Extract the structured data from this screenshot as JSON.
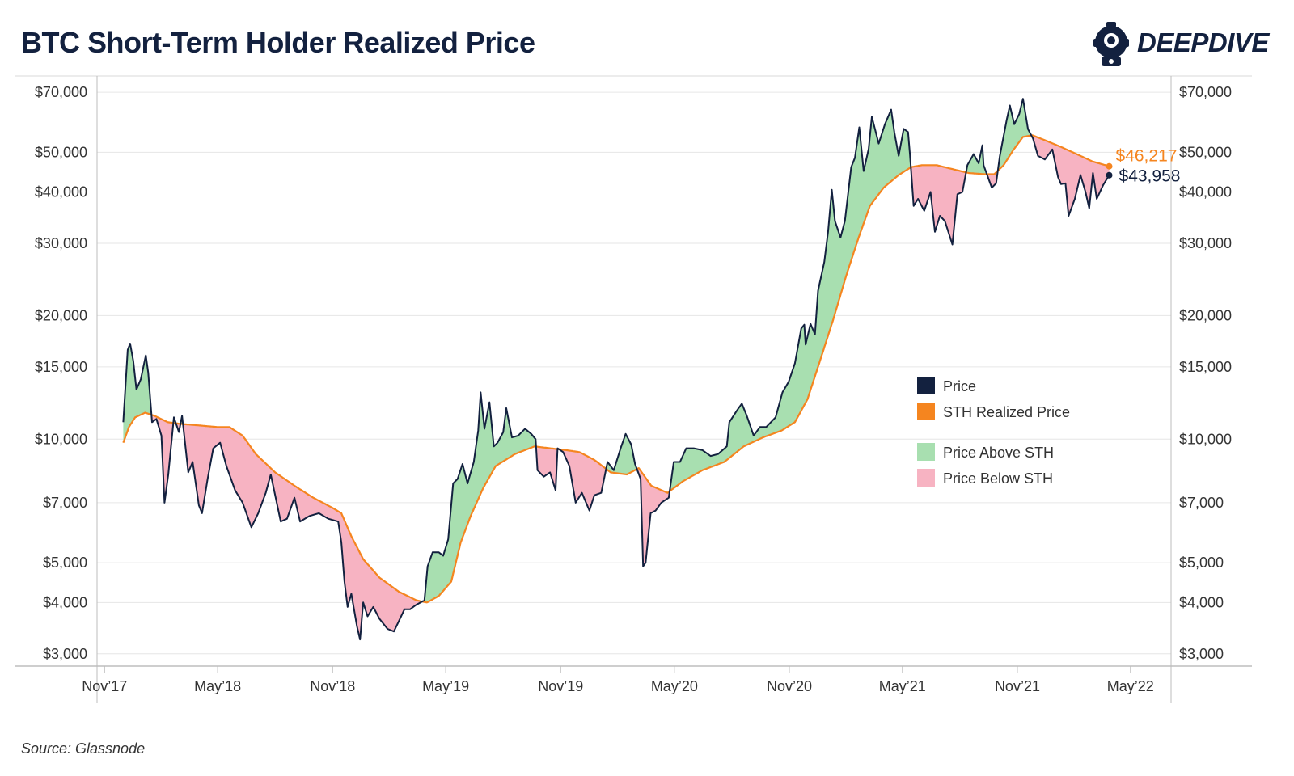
{
  "header": {
    "title": "BTC Short-Term Holder Realized Price"
  },
  "logo": {
    "name": "diver-helmet-icon",
    "text_bold": "DEEP",
    "text_light": "DIVE"
  },
  "footer": {
    "source": "Source: Glassnode"
  },
  "colors": {
    "price": "#13213f",
    "sth": "#f5851f",
    "above": "#a8dfb0",
    "below": "#f7b3c2",
    "grid": "#e6e6e6"
  },
  "chart_data": {
    "type": "line",
    "title": "BTC Short-Term Holder Realized Price",
    "y_scale": "log",
    "ylim": [
      2800,
      76000
    ],
    "xlim": [
      "2017-10-20",
      "2022-07-05"
    ],
    "yticks": [
      3000,
      4000,
      5000,
      7000,
      10000,
      15000,
      20000,
      30000,
      40000,
      50000,
      70000
    ],
    "ytick_labels": [
      "$3,000",
      "$4,000",
      "$5,000",
      "$7,000",
      "$10,000",
      "$15,000",
      "$20,000",
      "$30,000",
      "$40,000",
      "$50,000",
      "$70,000"
    ],
    "xticks": [
      "2017-11-01",
      "2018-05-01",
      "2018-11-01",
      "2019-05-01",
      "2019-11-01",
      "2020-05-01",
      "2020-11-01",
      "2021-05-01",
      "2021-11-01",
      "2022-05-01"
    ],
    "xtick_labels": [
      "Nov’17",
      "May’18",
      "Nov’18",
      "May’19",
      "Nov’19",
      "May’20",
      "Nov’20",
      "May’21",
      "Nov’21",
      "May’22"
    ],
    "legend": [
      {
        "label": "Price",
        "color": "#13213f"
      },
      {
        "label": "STH Realized Price",
        "color": "#f5851f"
      },
      {
        "label": "Price Above STH",
        "color": "#a8dfb0"
      },
      {
        "label": "Price Below STH",
        "color": "#f7b3c2"
      }
    ],
    "last_values": {
      "sth_label": "$46,217",
      "price_label": "$43,958"
    },
    "series": [
      {
        "name": "Price",
        "points": [
          [
            "2017-12-01",
            11000
          ],
          [
            "2017-12-08",
            16500
          ],
          [
            "2017-12-12",
            17100
          ],
          [
            "2017-12-17",
            15500
          ],
          [
            "2017-12-22",
            13200
          ],
          [
            "2017-12-29",
            14000
          ],
          [
            "2018-01-06",
            16000
          ],
          [
            "2018-01-10",
            14500
          ],
          [
            "2018-01-16",
            11000
          ],
          [
            "2018-01-23",
            11200
          ],
          [
            "2018-01-31",
            10200
          ],
          [
            "2018-02-05",
            7000
          ],
          [
            "2018-02-11",
            8200
          ],
          [
            "2018-02-20",
            11300
          ],
          [
            "2018-02-28",
            10400
          ],
          [
            "2018-03-05",
            11400
          ],
          [
            "2018-03-15",
            8300
          ],
          [
            "2018-03-22",
            8800
          ],
          [
            "2018-04-01",
            6900
          ],
          [
            "2018-04-06",
            6600
          ],
          [
            "2018-04-15",
            8000
          ],
          [
            "2018-04-24",
            9500
          ],
          [
            "2018-05-05",
            9800
          ],
          [
            "2018-05-15",
            8600
          ],
          [
            "2018-05-29",
            7500
          ],
          [
            "2018-06-10",
            7000
          ],
          [
            "2018-06-24",
            6100
          ],
          [
            "2018-07-05",
            6600
          ],
          [
            "2018-07-17",
            7400
          ],
          [
            "2018-07-25",
            8200
          ],
          [
            "2018-08-10",
            6300
          ],
          [
            "2018-08-20",
            6400
          ],
          [
            "2018-09-01",
            7200
          ],
          [
            "2018-09-10",
            6300
          ],
          [
            "2018-09-25",
            6500
          ],
          [
            "2018-10-10",
            6600
          ],
          [
            "2018-10-25",
            6400
          ],
          [
            "2018-11-10",
            6300
          ],
          [
            "2018-11-15",
            5600
          ],
          [
            "2018-11-20",
            4500
          ],
          [
            "2018-11-25",
            3900
          ],
          [
            "2018-12-01",
            4200
          ],
          [
            "2018-12-10",
            3500
          ],
          [
            "2018-12-15",
            3250
          ],
          [
            "2018-12-20",
            4000
          ],
          [
            "2018-12-27",
            3700
          ],
          [
            "2019-01-05",
            3900
          ],
          [
            "2019-01-15",
            3650
          ],
          [
            "2019-01-28",
            3450
          ],
          [
            "2019-02-07",
            3400
          ],
          [
            "2019-02-15",
            3600
          ],
          [
            "2019-02-24",
            3850
          ],
          [
            "2019-03-05",
            3850
          ],
          [
            "2019-03-15",
            3950
          ],
          [
            "2019-03-28",
            4050
          ],
          [
            "2019-04-02",
            4900
          ],
          [
            "2019-04-10",
            5300
          ],
          [
            "2019-04-20",
            5300
          ],
          [
            "2019-04-27",
            5200
          ],
          [
            "2019-05-05",
            5700
          ],
          [
            "2019-05-13",
            7800
          ],
          [
            "2019-05-20",
            8000
          ],
          [
            "2019-05-28",
            8700
          ],
          [
            "2019-06-05",
            7800
          ],
          [
            "2019-06-15",
            8800
          ],
          [
            "2019-06-22",
            10500
          ],
          [
            "2019-06-26",
            13000
          ],
          [
            "2019-07-02",
            10600
          ],
          [
            "2019-07-10",
            12300
          ],
          [
            "2019-07-17",
            9600
          ],
          [
            "2019-07-23",
            9800
          ],
          [
            "2019-08-01",
            10400
          ],
          [
            "2019-08-06",
            11900
          ],
          [
            "2019-08-15",
            10100
          ],
          [
            "2019-08-25",
            10200
          ],
          [
            "2019-09-05",
            10600
          ],
          [
            "2019-09-15",
            10300
          ],
          [
            "2019-09-22",
            10000
          ],
          [
            "2019-09-25",
            8400
          ],
          [
            "2019-10-05",
            8100
          ],
          [
            "2019-10-15",
            8300
          ],
          [
            "2019-10-24",
            7500
          ],
          [
            "2019-10-27",
            9500
          ],
          [
            "2019-11-05",
            9300
          ],
          [
            "2019-11-15",
            8600
          ],
          [
            "2019-11-25",
            7000
          ],
          [
            "2019-12-05",
            7400
          ],
          [
            "2019-12-17",
            6700
          ],
          [
            "2019-12-25",
            7300
          ],
          [
            "2020-01-05",
            7400
          ],
          [
            "2020-01-15",
            8800
          ],
          [
            "2020-01-25",
            8400
          ],
          [
            "2020-02-05",
            9500
          ],
          [
            "2020-02-13",
            10300
          ],
          [
            "2020-02-22",
            9700
          ],
          [
            "2020-02-28",
            8700
          ],
          [
            "2020-03-08",
            8000
          ],
          [
            "2020-03-12",
            4900
          ],
          [
            "2020-03-16",
            5000
          ],
          [
            "2020-03-24",
            6600
          ],
          [
            "2020-04-01",
            6700
          ],
          [
            "2020-04-10",
            7000
          ],
          [
            "2020-04-22",
            7200
          ],
          [
            "2020-04-30",
            8800
          ],
          [
            "2020-05-10",
            8800
          ],
          [
            "2020-05-20",
            9500
          ],
          [
            "2020-06-01",
            9500
          ],
          [
            "2020-06-15",
            9400
          ],
          [
            "2020-06-28",
            9100
          ],
          [
            "2020-07-10",
            9200
          ],
          [
            "2020-07-24",
            9600
          ],
          [
            "2020-07-28",
            11000
          ],
          [
            "2020-08-10",
            11800
          ],
          [
            "2020-08-17",
            12200
          ],
          [
            "2020-08-25",
            11400
          ],
          [
            "2020-09-05",
            10200
          ],
          [
            "2020-09-15",
            10700
          ],
          [
            "2020-09-25",
            10700
          ],
          [
            "2020-10-10",
            11300
          ],
          [
            "2020-10-21",
            13000
          ],
          [
            "2020-10-31",
            13800
          ],
          [
            "2020-11-10",
            15300
          ],
          [
            "2020-11-20",
            18600
          ],
          [
            "2020-11-25",
            19000
          ],
          [
            "2020-11-27",
            17000
          ],
          [
            "2020-12-05",
            19100
          ],
          [
            "2020-12-12",
            18000
          ],
          [
            "2020-12-17",
            23000
          ],
          [
            "2020-12-27",
            27000
          ],
          [
            "2021-01-02",
            32000
          ],
          [
            "2021-01-08",
            40500
          ],
          [
            "2021-01-13",
            34000
          ],
          [
            "2021-01-22",
            31000
          ],
          [
            "2021-01-29",
            34000
          ],
          [
            "2021-02-08",
            46000
          ],
          [
            "2021-02-14",
            48500
          ],
          [
            "2021-02-21",
            57500
          ],
          [
            "2021-02-28",
            45000
          ],
          [
            "2021-03-08",
            51000
          ],
          [
            "2021-03-13",
            61000
          ],
          [
            "2021-03-24",
            52500
          ],
          [
            "2021-04-03",
            58500
          ],
          [
            "2021-04-13",
            63500
          ],
          [
            "2021-04-18",
            56000
          ],
          [
            "2021-04-25",
            49000
          ],
          [
            "2021-05-03",
            57000
          ],
          [
            "2021-05-10",
            56000
          ],
          [
            "2021-05-13",
            49500
          ],
          [
            "2021-05-19",
            37000
          ],
          [
            "2021-05-26",
            38500
          ],
          [
            "2021-06-05",
            36000
          ],
          [
            "2021-06-15",
            40000
          ],
          [
            "2021-06-22",
            32000
          ],
          [
            "2021-06-30",
            35000
          ],
          [
            "2021-07-08",
            34000
          ],
          [
            "2021-07-20",
            29800
          ],
          [
            "2021-07-28",
            39500
          ],
          [
            "2021-08-05",
            40000
          ],
          [
            "2021-08-13",
            46500
          ],
          [
            "2021-08-23",
            49500
          ],
          [
            "2021-08-31",
            47000
          ],
          [
            "2021-09-06",
            52000
          ],
          [
            "2021-09-08",
            46500
          ],
          [
            "2021-09-21",
            41000
          ],
          [
            "2021-09-28",
            42000
          ],
          [
            "2021-10-04",
            49000
          ],
          [
            "2021-10-15",
            60000
          ],
          [
            "2021-10-20",
            65000
          ],
          [
            "2021-10-27",
            58500
          ],
          [
            "2021-11-04",
            62000
          ],
          [
            "2021-11-10",
            67500
          ],
          [
            "2021-11-18",
            56900
          ],
          [
            "2021-11-26",
            54000
          ],
          [
            "2021-12-04",
            49000
          ],
          [
            "2021-12-15",
            48000
          ],
          [
            "2021-12-27",
            50800
          ],
          [
            "2022-01-05",
            43500
          ],
          [
            "2022-01-10",
            41800
          ],
          [
            "2022-01-17",
            42000
          ],
          [
            "2022-01-22",
            35000
          ],
          [
            "2022-02-01",
            38500
          ],
          [
            "2022-02-10",
            44000
          ],
          [
            "2022-02-18",
            40000
          ],
          [
            "2022-02-24",
            36500
          ],
          [
            "2022-03-02",
            44500
          ],
          [
            "2022-03-08",
            38500
          ],
          [
            "2022-03-18",
            41500
          ],
          [
            "2022-03-22",
            42500
          ],
          [
            "2022-03-28",
            43958
          ]
        ]
      },
      {
        "name": "STH Realized Price",
        "points": [
          [
            "2017-12-01",
            9800
          ],
          [
            "2017-12-10",
            10700
          ],
          [
            "2017-12-20",
            11300
          ],
          [
            "2018-01-05",
            11600
          ],
          [
            "2018-01-20",
            11400
          ],
          [
            "2018-02-10",
            11000
          ],
          [
            "2018-03-01",
            10900
          ],
          [
            "2018-04-01",
            10800
          ],
          [
            "2018-05-01",
            10700
          ],
          [
            "2018-05-20",
            10700
          ],
          [
            "2018-06-10",
            10200
          ],
          [
            "2018-07-01",
            9200
          ],
          [
            "2018-08-01",
            8300
          ],
          [
            "2018-09-01",
            7700
          ],
          [
            "2018-10-01",
            7200
          ],
          [
            "2018-11-01",
            6800
          ],
          [
            "2018-11-15",
            6600
          ],
          [
            "2018-12-01",
            5800
          ],
          [
            "2018-12-20",
            5100
          ],
          [
            "2019-01-15",
            4600
          ],
          [
            "2019-02-15",
            4250
          ],
          [
            "2019-03-15",
            4050
          ],
          [
            "2019-04-01",
            4000
          ],
          [
            "2019-04-20",
            4150
          ],
          [
            "2019-05-10",
            4500
          ],
          [
            "2019-05-25",
            5600
          ],
          [
            "2019-06-10",
            6500
          ],
          [
            "2019-06-30",
            7600
          ],
          [
            "2019-07-20",
            8600
          ],
          [
            "2019-08-20",
            9200
          ],
          [
            "2019-09-20",
            9600
          ],
          [
            "2019-10-15",
            9500
          ],
          [
            "2019-11-10",
            9400
          ],
          [
            "2019-12-01",
            9300
          ],
          [
            "2019-12-25",
            8900
          ],
          [
            "2020-01-20",
            8300
          ],
          [
            "2020-02-15",
            8200
          ],
          [
            "2020-03-05",
            8500
          ],
          [
            "2020-03-25",
            7700
          ],
          [
            "2020-04-20",
            7400
          ],
          [
            "2020-05-15",
            7900
          ],
          [
            "2020-06-15",
            8400
          ],
          [
            "2020-07-20",
            8800
          ],
          [
            "2020-08-20",
            9600
          ],
          [
            "2020-09-20",
            10100
          ],
          [
            "2020-10-20",
            10500
          ],
          [
            "2020-11-10",
            11000
          ],
          [
            "2020-11-30",
            12500
          ],
          [
            "2020-12-20",
            15500
          ],
          [
            "2021-01-10",
            19500
          ],
          [
            "2021-01-31",
            25000
          ],
          [
            "2021-02-20",
            31000
          ],
          [
            "2021-03-10",
            37000
          ],
          [
            "2021-04-01",
            41000
          ],
          [
            "2021-04-25",
            44000
          ],
          [
            "2021-05-15",
            46000
          ],
          [
            "2021-06-01",
            46500
          ],
          [
            "2021-06-25",
            46500
          ],
          [
            "2021-07-20",
            45500
          ],
          [
            "2021-08-15",
            44500
          ],
          [
            "2021-09-10",
            44200
          ],
          [
            "2021-09-25",
            44200
          ],
          [
            "2021-10-10",
            46500
          ],
          [
            "2021-10-25",
            50500
          ],
          [
            "2021-11-10",
            54500
          ],
          [
            "2021-11-25",
            55000
          ],
          [
            "2021-12-15",
            53500
          ],
          [
            "2022-01-10",
            51500
          ],
          [
            "2022-02-10",
            49000
          ],
          [
            "2022-03-01",
            47500
          ],
          [
            "2022-03-28",
            46217
          ]
        ]
      }
    ]
  }
}
